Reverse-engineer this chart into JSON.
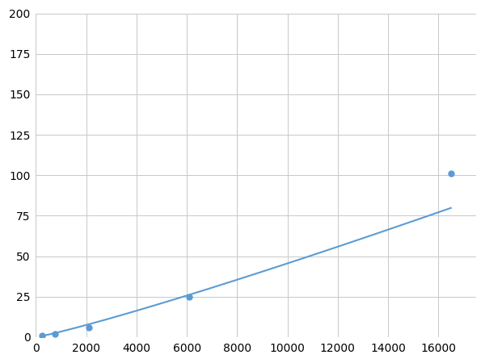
{
  "x": [
    250,
    750,
    2100,
    6100,
    16500
  ],
  "y": [
    1,
    2,
    6,
    25,
    101
  ],
  "line_color": "#5b9bd5",
  "marker_color": "#5b9bd5",
  "marker_size": 5,
  "linewidth": 1.5,
  "xlim": [
    0,
    17500
  ],
  "ylim": [
    0,
    200
  ],
  "xticks": [
    0,
    2000,
    4000,
    6000,
    8000,
    10000,
    12000,
    14000,
    16000
  ],
  "yticks": [
    0,
    25,
    50,
    75,
    100,
    125,
    150,
    175,
    200
  ],
  "grid_color": "#c8c8c8",
  "background_color": "#ffffff",
  "tick_label_fontsize": 10
}
